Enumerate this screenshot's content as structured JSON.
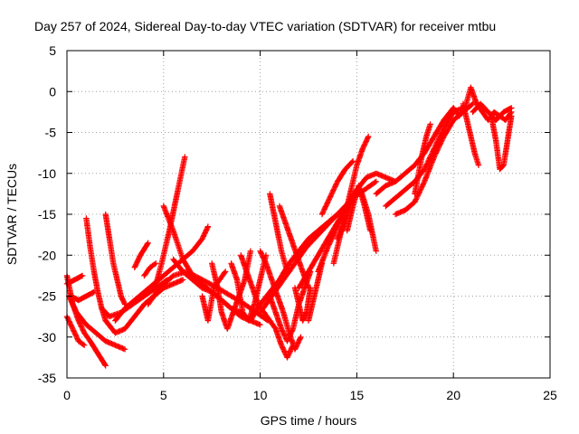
{
  "chart_data": {
    "type": "scatter",
    "title": "Day 257 of 2024, Sidereal Day-to-day VTEC variation (SDTVAR) for receiver mtbu",
    "xlabel": "GPS time / hours",
    "ylabel": "SDTVAR / TECUs",
    "xlim": [
      0,
      25
    ],
    "ylim": [
      -35,
      5
    ],
    "xticks": [
      "0",
      "5",
      "10",
      "15",
      "20",
      "25"
    ],
    "yticks": [
      "5",
      "0",
      "-5",
      "-10",
      "-15",
      "-20",
      "-25",
      "-30",
      "-35"
    ],
    "grid": true,
    "marker": "+",
    "color": "#ff0000",
    "series": [
      {
        "x": [
          0.0,
          0.3,
          0.6,
          0.9,
          1.2,
          1.6,
          2.0
        ],
        "y": [
          -22.5,
          -26,
          -28,
          -29.5,
          -30.5,
          -32,
          -33.5
        ]
      },
      {
        "x": [
          0.0,
          0.3,
          0.6,
          0.9
        ],
        "y": [
          -27.5,
          -29,
          -30.5,
          -31
        ]
      },
      {
        "x": [
          0.1,
          0.5,
          1.0,
          1.5,
          2.0,
          2.5,
          3.0
        ],
        "y": [
          -25,
          -27,
          -28.5,
          -29.5,
          -30.5,
          -31,
          -31.5
        ]
      },
      {
        "x": [
          0.0,
          0.4,
          0.8
        ],
        "y": [
          -23.5,
          -23,
          -22.5
        ]
      },
      {
        "x": [
          0.2,
          0.6,
          1.0,
          1.4
        ],
        "y": [
          -25,
          -25.5,
          -25,
          -24.5
        ]
      },
      {
        "x": [
          1.0,
          1.2,
          1.4,
          1.6,
          1.8,
          2.0
        ],
        "y": [
          -15.5,
          -19,
          -22,
          -24.5,
          -26.5,
          -28
        ]
      },
      {
        "x": [
          2.0,
          2.2,
          2.4,
          2.6,
          2.8,
          3.0
        ],
        "y": [
          -15,
          -18,
          -21,
          -23,
          -25,
          -26
        ]
      },
      {
        "x": [
          2.0,
          2.5,
          3.0,
          3.5,
          4.0,
          4.5,
          5.0,
          5.5,
          6.0
        ],
        "y": [
          -28,
          -29.5,
          -29,
          -27.5,
          -26,
          -25,
          -24,
          -23.5,
          -23
        ]
      },
      {
        "x": [
          1.8,
          2.2,
          2.8,
          3.4,
          4.0,
          4.6,
          5.2
        ],
        "y": [
          -26.5,
          -27.5,
          -27,
          -26,
          -25,
          -24,
          -23
        ]
      },
      {
        "x": [
          2.5,
          3.0,
          3.5,
          4.0,
          4.5,
          5.0,
          5.5,
          6.0,
          6.5,
          7.0,
          7.3
        ],
        "y": [
          -28,
          -26.5,
          -25.5,
          -24.5,
          -23.5,
          -22.5,
          -21.5,
          -20.5,
          -19.5,
          -18,
          -16.5
        ]
      },
      {
        "x": [
          3.5,
          3.8,
          4.2
        ],
        "y": [
          -21.5,
          -20,
          -18.5
        ]
      },
      {
        "x": [
          4.0,
          4.3,
          4.6
        ],
        "y": [
          -22.5,
          -21.5,
          -21
        ]
      },
      {
        "x": [
          4.5,
          4.9,
          5.3,
          5.7,
          6.1
        ],
        "y": [
          -24.5,
          -21,
          -17,
          -12.5,
          -8
        ]
      },
      {
        "x": [
          5.0,
          5.5,
          6.0,
          6.5,
          7.0,
          7.5,
          8.0,
          8.5,
          9.0,
          9.5
        ],
        "y": [
          -14,
          -17,
          -20.5,
          -22.5,
          -23.5,
          -24.5,
          -25.5,
          -26.5,
          -27.5,
          -28
        ]
      },
      {
        "x": [
          5.5,
          6.0,
          6.5,
          7.0,
          7.5,
          8.0,
          8.5,
          9.0,
          9.5,
          10.0
        ],
        "y": [
          -20.5,
          -22,
          -23,
          -24,
          -24.5,
          -25.5,
          -26.5,
          -27,
          -28,
          -28.5
        ]
      },
      {
        "x": [
          4.2,
          4.8,
          5.5,
          6.2,
          7.0,
          7.8,
          8.5,
          9.2,
          9.8,
          10.4
        ],
        "y": [
          -26,
          -24,
          -22.5,
          -22,
          -23,
          -24,
          -25,
          -26,
          -27,
          -28
        ]
      },
      {
        "x": [
          7.5,
          7.8,
          8.0,
          8.3,
          8.6,
          8.9,
          9.2,
          9.5
        ],
        "y": [
          -21,
          -24,
          -27,
          -29,
          -27,
          -25,
          -23,
          -19.5
        ]
      },
      {
        "x": [
          7.0,
          7.3,
          7.6,
          7.9,
          8.2
        ],
        "y": [
          -25,
          -28,
          -24,
          -23,
          -22
        ]
      },
      {
        "x": [
          8.5,
          8.8,
          9.1,
          9.4,
          9.7,
          10.0,
          10.3
        ],
        "y": [
          -21,
          -23,
          -27,
          -28,
          -26,
          -23,
          -20
        ]
      },
      {
        "x": [
          9.0,
          9.3,
          9.6,
          9.9,
          10.2,
          10.5,
          10.8,
          11.1,
          11.4,
          11.7
        ],
        "y": [
          -20,
          -22,
          -24,
          -26,
          -27,
          -28,
          -29,
          -31,
          -32.5,
          -31
        ]
      },
      {
        "x": [
          10.0,
          10.3,
          10.6,
          10.9,
          11.2,
          11.5,
          11.8,
          12.1
        ],
        "y": [
          -19.5,
          -21,
          -23,
          -25,
          -27,
          -29.5,
          -31.5,
          -30
        ]
      },
      {
        "x": [
          10.5,
          10.8,
          11.1,
          11.4,
          11.7,
          12.0,
          12.3,
          12.6
        ],
        "y": [
          -25,
          -27,
          -29,
          -30.5,
          -29,
          -26,
          -24,
          -22
        ]
      },
      {
        "x": [
          10.5,
          10.8,
          11.1,
          11.4
        ],
        "y": [
          -12.5,
          -16,
          -19.5,
          -22
        ]
      },
      {
        "x": [
          11.0,
          11.3,
          11.6,
          11.9,
          12.2,
          12.5
        ],
        "y": [
          -14,
          -16,
          -18,
          -20,
          -22,
          -24
        ]
      },
      {
        "x": [
          9.5,
          10.0,
          10.5,
          11.0,
          11.5,
          12.0,
          12.5,
          13.0,
          13.5,
          14.0,
          14.5
        ],
        "y": [
          -28,
          -26,
          -24.5,
          -23,
          -21,
          -19.5,
          -18,
          -17,
          -16,
          -15,
          -14
        ]
      },
      {
        "x": [
          10.0,
          10.6,
          11.2,
          11.8,
          12.4,
          13.0,
          13.6,
          14.2,
          14.8,
          15.4,
          16.0
        ],
        "y": [
          -27,
          -25,
          -23,
          -21,
          -19,
          -17.5,
          -16,
          -14.5,
          -13,
          -12,
          -11
        ]
      },
      {
        "x": [
          11.8,
          12.0,
          12.2,
          12.4,
          12.6
        ],
        "y": [
          -24,
          -26,
          -28,
          -27,
          -24
        ]
      },
      {
        "x": [
          12.5,
          12.8,
          13.0,
          13.2
        ],
        "y": [
          -28,
          -25,
          -23,
          -21
        ]
      },
      {
        "x": [
          12.0,
          12.5,
          13.0,
          13.5,
          14.0,
          14.5,
          15.0
        ],
        "y": [
          -24,
          -22,
          -20,
          -18,
          -16,
          -14,
          -12
        ]
      },
      {
        "x": [
          13.0,
          13.5,
          14.0,
          14.5,
          15.0,
          15.5,
          16.0,
          16.5,
          17.0
        ],
        "y": [
          -22,
          -19,
          -16.5,
          -14,
          -12,
          -10.5,
          -10,
          -10.5,
          -11
        ]
      },
      {
        "x": [
          13.2,
          13.6,
          14.0,
          14.4,
          14.8
        ],
        "y": [
          -15,
          -13,
          -11,
          -9.5,
          -8.5
        ]
      },
      {
        "x": [
          13.8,
          14.1,
          14.4,
          14.7,
          15.0,
          15.3,
          15.6
        ],
        "y": [
          -21,
          -18,
          -15,
          -12,
          -9,
          -7,
          -5.5
        ]
      },
      {
        "x": [
          14.0,
          14.4,
          14.8,
          15.2,
          15.6,
          16.0
        ],
        "y": [
          -18,
          -16,
          -13,
          -12,
          -15,
          -19.5
        ]
      },
      {
        "x": [
          14.5,
          14.8,
          15.1,
          15.4,
          15.7
        ],
        "y": [
          -17,
          -14,
          -11.5,
          -14,
          -17
        ]
      },
      {
        "x": [
          16.0,
          16.5,
          17.0,
          17.5,
          18.0,
          18.5,
          19.0,
          19.5,
          20.0
        ],
        "y": [
          -12.5,
          -11.5,
          -11,
          -10,
          -9,
          -7.5,
          -5.5,
          -3.5,
          -2
        ]
      },
      {
        "x": [
          16.5,
          17.0,
          17.5,
          18.0,
          18.5,
          19.0,
          19.5,
          20.0,
          20.5
        ],
        "y": [
          -14,
          -13,
          -12,
          -11,
          -9.5,
          -7,
          -4.5,
          -2.5,
          -2
        ]
      },
      {
        "x": [
          17.0,
          17.5,
          18.0,
          18.5,
          19.0,
          19.5,
          20.0,
          20.5,
          21.0
        ],
        "y": [
          -15,
          -14.5,
          -13.5,
          -11,
          -8,
          -5.5,
          -3.5,
          -2.5,
          -1.5
        ]
      },
      {
        "x": [
          18.0,
          18.2,
          18.4,
          18.6,
          18.8
        ],
        "y": [
          -12.5,
          -10,
          -7.5,
          -5.5,
          -4
        ]
      },
      {
        "x": [
          20.0,
          20.3,
          20.6,
          20.9,
          21.2,
          21.5,
          21.8,
          22.1,
          22.4,
          22.7,
          23.0
        ],
        "y": [
          -2,
          -3,
          -2,
          0.5,
          -1.5,
          -2.5,
          -3.5,
          -2.5,
          -3,
          -3.5,
          -2.5
        ]
      },
      {
        "x": [
          20.5,
          20.7,
          20.9,
          21.1,
          21.3
        ],
        "y": [
          -1.5,
          -3.5,
          -5.5,
          -7.5,
          -9
        ]
      },
      {
        "x": [
          21.0,
          21.4,
          21.8,
          22.2,
          22.6,
          23.0
        ],
        "y": [
          -2.5,
          -1.5,
          -2.5,
          -3.5,
          -2.5,
          -2
        ]
      },
      {
        "x": [
          22.0,
          22.2,
          22.4,
          22.6,
          22.8,
          23.0
        ],
        "y": [
          -3.5,
          -6,
          -9.5,
          -9,
          -6,
          -3
        ]
      }
    ]
  }
}
